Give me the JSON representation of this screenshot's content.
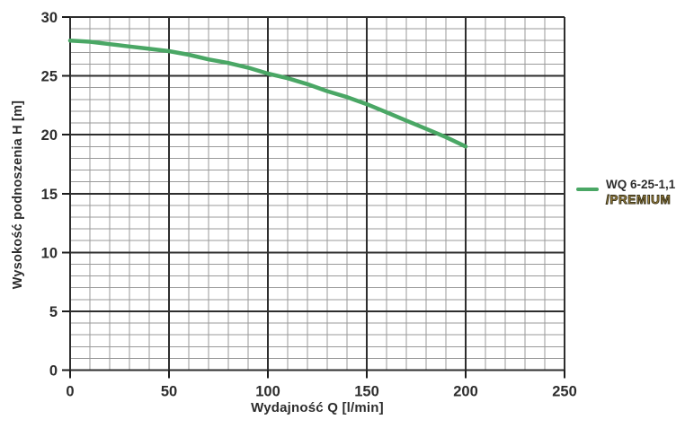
{
  "chart_data": {
    "type": "line",
    "title": "",
    "xlabel": "Wydajność Q [l/min]",
    "ylabel": "Wysokość podnoszenia H [m]",
    "xlim": [
      0,
      250
    ],
    "ylim": [
      0,
      30
    ],
    "xticks": [
      0,
      50,
      100,
      150,
      200,
      250
    ],
    "yticks": [
      0,
      5,
      10,
      15,
      20,
      25,
      30
    ],
    "x_minor_step": 10,
    "y_minor_step": 1,
    "grid": "major+minor",
    "legend_position": "right-outside",
    "series": [
      {
        "name": "WQ 6-25-1,1 /PREMIUM",
        "color": "#4aa765",
        "x": [
          0,
          10,
          20,
          30,
          40,
          50,
          60,
          70,
          80,
          90,
          100,
          110,
          120,
          130,
          140,
          150,
          160,
          170,
          180,
          190,
          200
        ],
        "y": [
          28.0,
          27.9,
          27.7,
          27.5,
          27.3,
          27.1,
          26.8,
          26.4,
          26.1,
          25.7,
          25.2,
          24.8,
          24.3,
          23.7,
          23.2,
          22.6,
          21.9,
          21.2,
          20.5,
          19.8,
          19.0
        ]
      }
    ]
  },
  "legend": {
    "model": "WQ 6-25-1,1",
    "brand": "/PREMIUM",
    "line_color": "#4aa765",
    "brand_color": "#ab8c3c"
  },
  "colors": {
    "background": "#ffffff",
    "axis": "#1c1c1c",
    "major_grid": "#2e2e2e",
    "minor_grid": "#9a9a9a",
    "text": "#2d2d2d",
    "curve": "#4aa765"
  }
}
